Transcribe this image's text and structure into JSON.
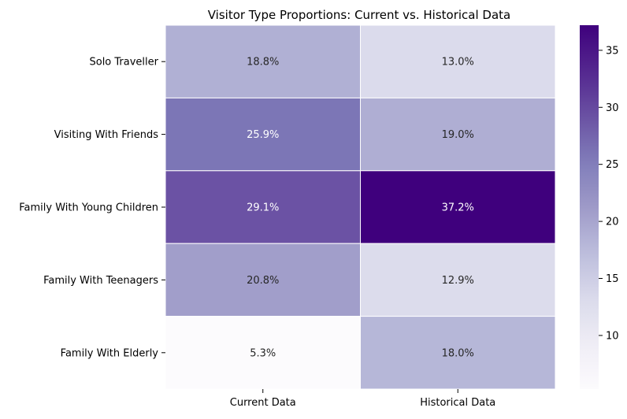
{
  "chart_data": {
    "type": "heatmap",
    "title": "Visitor Type Proportions: Current vs. Historical Data",
    "xlabel": "",
    "ylabel": "",
    "columns": [
      "Current Data",
      "Historical Data"
    ],
    "rows": [
      "Solo Traveller",
      "Visiting With Friends",
      "Family With Young Children",
      "Family With Teenagers",
      "Family With Elderly"
    ],
    "values": [
      [
        18.8,
        13.0
      ],
      [
        25.9,
        19.0
      ],
      [
        29.1,
        37.2
      ],
      [
        20.8,
        12.9
      ],
      [
        5.3,
        18.0
      ]
    ],
    "value_format": "%",
    "colormap": "Purples",
    "color_range": [
      5.3,
      37.2
    ],
    "colorbar": {
      "ticks": [
        10,
        15,
        20,
        25,
        30,
        35
      ]
    },
    "grid": false,
    "cell_separator_color": "#ffffff"
  }
}
